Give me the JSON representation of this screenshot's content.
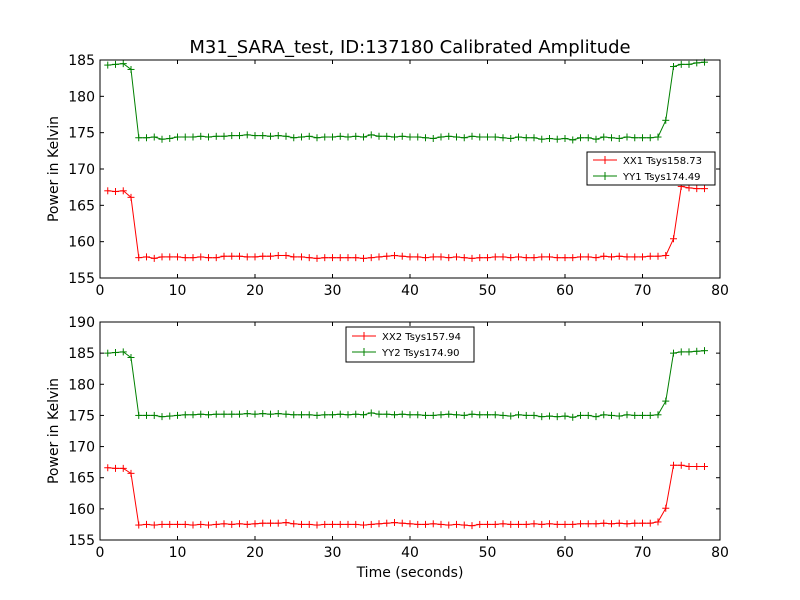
{
  "chart_data": [
    {
      "type": "line",
      "title": "M31_SARA_test, ID:137180 Calibrated Amplitude",
      "xlabel": "",
      "ylabel": "Power in Kelvin",
      "xlim": [
        0,
        80
      ],
      "ylim": [
        155,
        185
      ],
      "xticks": [
        "0",
        "10",
        "20",
        "30",
        "40",
        "50",
        "60",
        "70",
        "80"
      ],
      "yticks": [
        "155",
        "160",
        "165",
        "170",
        "175",
        "180",
        "185"
      ],
      "legend_position": "center-right",
      "x": [
        1,
        2,
        3,
        4,
        5,
        6,
        7,
        8,
        9,
        10,
        11,
        12,
        13,
        14,
        15,
        16,
        17,
        18,
        19,
        20,
        21,
        22,
        23,
        24,
        25,
        26,
        27,
        28,
        29,
        30,
        31,
        32,
        33,
        34,
        35,
        36,
        37,
        38,
        39,
        40,
        41,
        42,
        43,
        44,
        45,
        46,
        47,
        48,
        49,
        50,
        51,
        52,
        53,
        54,
        55,
        56,
        57,
        58,
        59,
        60,
        61,
        62,
        63,
        64,
        65,
        66,
        67,
        68,
        69,
        70,
        71,
        72,
        73,
        74,
        75,
        76,
        77,
        78
      ],
      "series": [
        {
          "name": "XX1 Tsys158.73",
          "color": "#ff0000",
          "values": [
            167.0,
            166.9,
            167.0,
            166.1,
            157.8,
            157.9,
            157.7,
            157.9,
            157.9,
            157.9,
            157.8,
            157.8,
            157.9,
            157.8,
            157.8,
            158.0,
            158.0,
            158.0,
            157.9,
            157.9,
            158.0,
            158.0,
            158.1,
            158.1,
            157.9,
            157.9,
            157.8,
            157.7,
            157.8,
            157.8,
            157.8,
            157.8,
            157.8,
            157.7,
            157.8,
            157.9,
            158.0,
            158.1,
            158.0,
            157.9,
            157.9,
            157.8,
            157.9,
            157.9,
            157.8,
            157.9,
            157.8,
            157.7,
            157.8,
            157.8,
            157.9,
            157.9,
            157.8,
            157.9,
            157.8,
            157.8,
            157.9,
            157.9,
            157.8,
            157.8,
            157.8,
            157.9,
            157.9,
            157.8,
            158.0,
            157.9,
            158.0,
            157.9,
            157.9,
            157.9,
            158.0,
            158.0,
            158.1,
            160.4,
            167.6,
            167.4,
            167.3,
            167.3
          ]
        },
        {
          "name": "YY1 Tsys174.49",
          "color": "#008000",
          "values": [
            184.3,
            184.4,
            184.5,
            183.7,
            174.3,
            174.3,
            174.4,
            174.1,
            174.2,
            174.4,
            174.4,
            174.4,
            174.5,
            174.4,
            174.5,
            174.5,
            174.6,
            174.6,
            174.7,
            174.6,
            174.6,
            174.5,
            174.6,
            174.5,
            174.3,
            174.4,
            174.5,
            174.3,
            174.4,
            174.4,
            174.5,
            174.4,
            174.5,
            174.4,
            174.7,
            174.5,
            174.5,
            174.4,
            174.5,
            174.4,
            174.4,
            174.3,
            174.2,
            174.4,
            174.5,
            174.4,
            174.3,
            174.5,
            174.4,
            174.4,
            174.4,
            174.3,
            174.2,
            174.4,
            174.3,
            174.3,
            174.1,
            174.2,
            174.1,
            174.2,
            174.0,
            174.3,
            174.3,
            174.1,
            174.4,
            174.3,
            174.2,
            174.4,
            174.3,
            174.3,
            174.3,
            174.4,
            176.7,
            184.1,
            184.4,
            184.4,
            184.6,
            184.7
          ]
        }
      ]
    },
    {
      "type": "line",
      "title": "",
      "xlabel": "Time (seconds)",
      "ylabel": "Power in Kelvin",
      "xlim": [
        0,
        80
      ],
      "ylim": [
        155,
        190
      ],
      "xticks": [
        "0",
        "10",
        "20",
        "30",
        "40",
        "50",
        "60",
        "70",
        "80"
      ],
      "yticks": [
        "155",
        "160",
        "165",
        "170",
        "175",
        "180",
        "185",
        "190"
      ],
      "legend_position": "top-center",
      "x": [
        1,
        2,
        3,
        4,
        5,
        6,
        7,
        8,
        9,
        10,
        11,
        12,
        13,
        14,
        15,
        16,
        17,
        18,
        19,
        20,
        21,
        22,
        23,
        24,
        25,
        26,
        27,
        28,
        29,
        30,
        31,
        32,
        33,
        34,
        35,
        36,
        37,
        38,
        39,
        40,
        41,
        42,
        43,
        44,
        45,
        46,
        47,
        48,
        49,
        50,
        51,
        52,
        53,
        54,
        55,
        56,
        57,
        58,
        59,
        60,
        61,
        62,
        63,
        64,
        65,
        66,
        67,
        68,
        69,
        70,
        71,
        72,
        73,
        74,
        75,
        76,
        77,
        78
      ],
      "series": [
        {
          "name": "XX2 Tsys157.94",
          "color": "#ff0000",
          "values": [
            166.6,
            166.5,
            166.5,
            165.7,
            157.4,
            157.5,
            157.4,
            157.5,
            157.5,
            157.5,
            157.5,
            157.4,
            157.5,
            157.4,
            157.5,
            157.6,
            157.5,
            157.6,
            157.5,
            157.6,
            157.7,
            157.7,
            157.7,
            157.8,
            157.6,
            157.5,
            157.5,
            157.4,
            157.5,
            157.5,
            157.5,
            157.5,
            157.5,
            157.4,
            157.5,
            157.6,
            157.7,
            157.8,
            157.7,
            157.6,
            157.5,
            157.5,
            157.6,
            157.5,
            157.4,
            157.5,
            157.4,
            157.3,
            157.5,
            157.5,
            157.5,
            157.6,
            157.5,
            157.5,
            157.5,
            157.6,
            157.5,
            157.6,
            157.5,
            157.5,
            157.5,
            157.6,
            157.6,
            157.6,
            157.7,
            157.6,
            157.7,
            157.6,
            157.7,
            157.7,
            157.7,
            157.9,
            160.1,
            167.0,
            167.0,
            166.8,
            166.8,
            166.8
          ]
        },
        {
          "name": "YY2 Tsys174.90",
          "color": "#008000",
          "values": [
            185.0,
            185.1,
            185.2,
            184.3,
            175.0,
            175.0,
            175.0,
            174.8,
            174.9,
            175.0,
            175.1,
            175.1,
            175.2,
            175.1,
            175.2,
            175.2,
            175.2,
            175.2,
            175.3,
            175.2,
            175.3,
            175.2,
            175.3,
            175.2,
            175.1,
            175.1,
            175.1,
            175.0,
            175.1,
            175.1,
            175.2,
            175.1,
            175.2,
            175.1,
            175.4,
            175.2,
            175.2,
            175.1,
            175.2,
            175.1,
            175.1,
            175.0,
            175.0,
            175.1,
            175.2,
            175.1,
            175.0,
            175.2,
            175.1,
            175.1,
            175.1,
            175.0,
            174.9,
            175.1,
            175.0,
            175.0,
            174.8,
            174.9,
            174.8,
            174.9,
            174.7,
            175.0,
            175.0,
            174.8,
            175.1,
            175.0,
            174.9,
            175.1,
            175.0,
            175.0,
            175.0,
            175.1,
            177.3,
            185.0,
            185.2,
            185.2,
            185.3,
            185.4
          ]
        }
      ]
    }
  ]
}
